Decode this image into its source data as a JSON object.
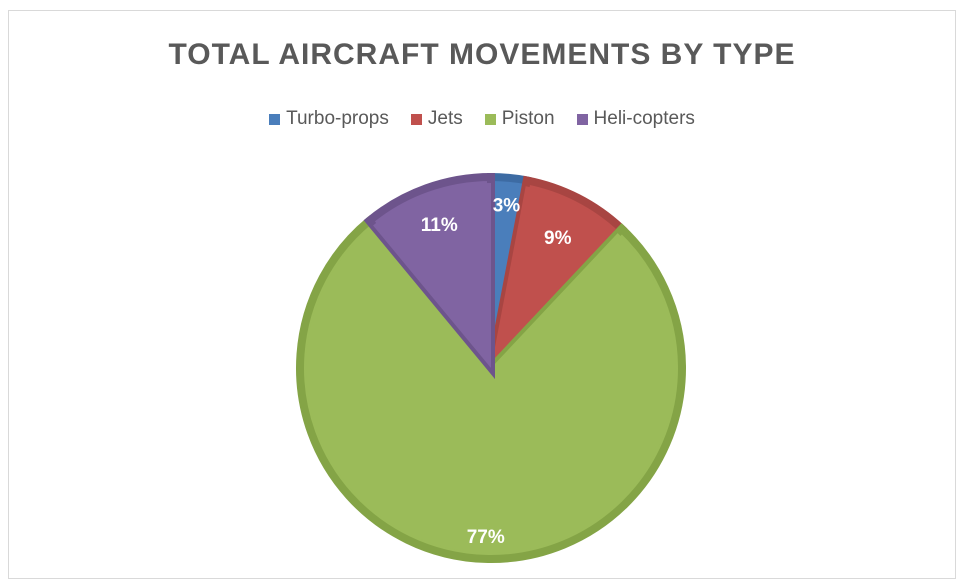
{
  "chart_data": {
    "type": "pie",
    "title": "TOTAL AIRCRAFT MOVEMENTS BY TYPE",
    "legend_position": "top",
    "start_angle_deg": 0,
    "slices": [
      {
        "name": "Turbo-props",
        "value": 3,
        "label": "3%",
        "color": "#4a7ebb",
        "edge_color": "#3d6ba3"
      },
      {
        "name": "Jets",
        "value": 9,
        "label": "9%",
        "color": "#c0504d",
        "edge_color": "#a84542"
      },
      {
        "name": "Piston",
        "value": 77,
        "label": "77%",
        "color": "#9bbb59",
        "edge_color": "#84a446"
      },
      {
        "name": "Heli-copters",
        "value": 11,
        "label": "11%",
        "color": "#8064a2",
        "edge_color": "#6d548c"
      }
    ]
  }
}
